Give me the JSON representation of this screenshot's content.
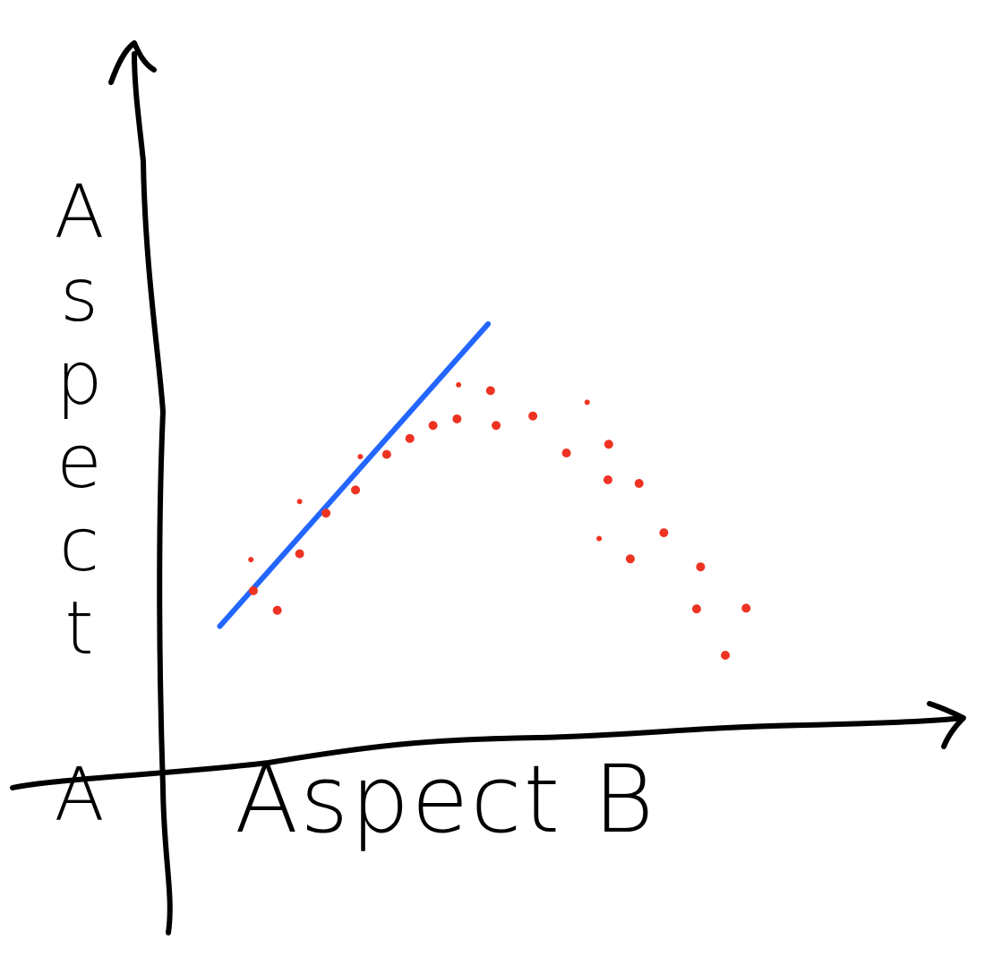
{
  "chart_data": {
    "type": "scatter",
    "title": "",
    "xlabel": "Aspect B",
    "ylabel": "Aspect A",
    "xlim": [
      0,
      10
    ],
    "ylim": [
      0,
      10
    ],
    "grid": false,
    "ticks": false,
    "style": "hand-drawn",
    "colors": {
      "points": "#ee3322",
      "line": "#2266ff",
      "axes": "#000000"
    },
    "points": [
      [
        1.09,
        2.9
      ],
      [
        1.42,
        2.2
      ],
      [
        1.12,
        2.47
      ],
      [
        1.7,
        3.7
      ],
      [
        1.7,
        2.98
      ],
      [
        2.03,
        3.54
      ],
      [
        2.4,
        3.86
      ],
      [
        2.46,
        4.32
      ],
      [
        2.79,
        4.35
      ],
      [
        3.08,
        4.57
      ],
      [
        3.37,
        4.75
      ],
      [
        3.67,
        4.84
      ],
      [
        3.69,
        5.31
      ],
      [
        4.09,
        5.23
      ],
      [
        4.16,
        4.75
      ],
      [
        4.62,
        4.88
      ],
      [
        5.3,
        5.07
      ],
      [
        5.57,
        4.49
      ],
      [
        5.04,
        4.37
      ],
      [
        5.56,
        4.0
      ],
      [
        5.95,
        3.95
      ],
      [
        5.45,
        3.19
      ],
      [
        5.84,
        2.91
      ],
      [
        6.26,
        3.27
      ],
      [
        6.72,
        2.8
      ],
      [
        6.67,
        2.22
      ],
      [
        7.29,
        2.23
      ],
      [
        7.03,
        1.58
      ]
    ],
    "line": {
      "from": [
        0.7,
        1.98
      ],
      "to": [
        4.06,
        6.15
      ]
    }
  }
}
